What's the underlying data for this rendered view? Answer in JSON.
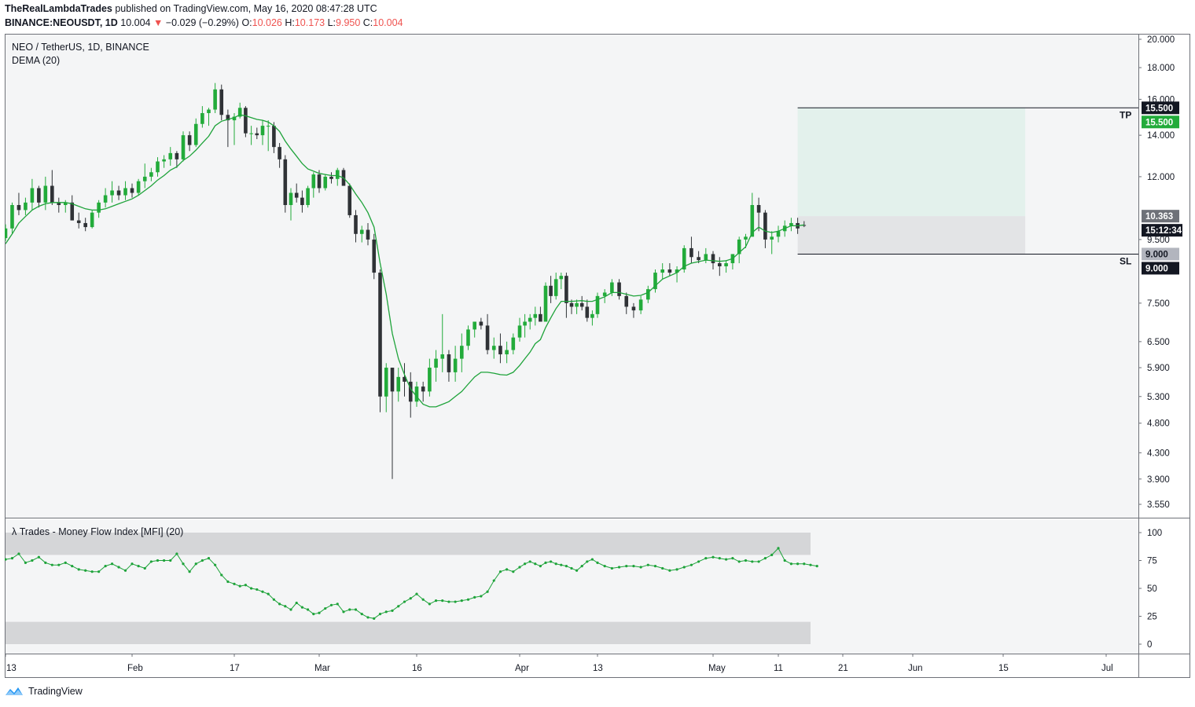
{
  "header": {
    "author": "TheRealLambdaTrades",
    "published": "published on TradingView.com, May 16, 2020 08:47:28 UTC",
    "symbol": "BINANCE:NEOUSDT, 1D",
    "last": "10.004",
    "change_arrow": "▼",
    "change": "−0.029 (−0.29%)",
    "o_label": "O:",
    "o_val": "10.026",
    "h_label": "H:",
    "h_val": "10.173",
    "l_label": "L:",
    "l_val": "9.950",
    "c_label": "C:",
    "c_val": "10.004"
  },
  "legend": {
    "pair": "NEO / TetherUS, 1D, BINANCE",
    "indicator": "DEMA (20)",
    "mfi_title": "λ Trades - Money Flow Index [MFI] (20)"
  },
  "footer": {
    "brand": "TradingView"
  },
  "colors": {
    "up": "#089981",
    "up_fill": "#26a69a",
    "bull": "#22ab3a",
    "bear": "#2f3236",
    "dema": "#1ea33a",
    "tp_zone": "#e3f1ec",
    "sl_zone": "#e3e4e6",
    "band": "#d5d6d8"
  },
  "chart_data": [
    {
      "type": "candlestick",
      "title": "NEO / TetherUS, 1D, BINANCE",
      "y_ticks": [
        "20.000",
        "18.000",
        "16.000",
        "14.000",
        "12.000",
        "10.363",
        "9.500",
        "9.000",
        "7.500",
        "6.500",
        "5.900",
        "5.300",
        "4.800",
        "4.300",
        "3.900",
        "3.550"
      ],
      "y_tick_values": [
        20.0,
        18.0,
        16.0,
        14.0,
        12.0,
        10.363,
        9.5,
        9.0,
        7.5,
        6.5,
        5.9,
        5.3,
        4.8,
        4.3,
        3.9,
        3.55
      ],
      "x_ticks": [
        "13",
        "Feb",
        "17",
        "Mar",
        "16",
        "Apr",
        "13",
        "May",
        "11",
        "21",
        "Jun",
        "15",
        "Jul"
      ],
      "x_tick_days": [
        0,
        19,
        35,
        50,
        66,
        82,
        97,
        113,
        123,
        133,
        143,
        157,
        171
      ],
      "candles_ohlc_from_jan13": [
        [
          9.55,
          10.05,
          9.45,
          9.9
        ],
        [
          9.9,
          10.9,
          9.7,
          10.8
        ],
        [
          10.8,
          11.3,
          10.4,
          10.6
        ],
        [
          10.6,
          11.1,
          10.4,
          10.9
        ],
        [
          10.9,
          11.9,
          10.6,
          11.5
        ],
        [
          11.5,
          11.6,
          10.7,
          10.9
        ],
        [
          10.9,
          12.0,
          10.6,
          11.6
        ],
        [
          11.6,
          12.3,
          10.8,
          10.9
        ],
        [
          10.9,
          11.1,
          10.5,
          10.8
        ],
        [
          10.8,
          11.0,
          10.5,
          10.9
        ],
        [
          10.9,
          11.2,
          10.2,
          10.2
        ],
        [
          10.2,
          10.5,
          9.9,
          10.1
        ],
        [
          10.1,
          10.3,
          9.8,
          9.95
        ],
        [
          9.95,
          10.6,
          9.9,
          10.5
        ],
        [
          10.5,
          11.0,
          10.3,
          10.9
        ],
        [
          10.9,
          11.5,
          10.7,
          11.2
        ],
        [
          11.2,
          11.8,
          10.9,
          11.4
        ],
        [
          11.4,
          11.6,
          11.0,
          11.2
        ],
        [
          11.2,
          11.8,
          11.0,
          11.5
        ],
        [
          11.5,
          11.7,
          11.1,
          11.3
        ],
        [
          11.3,
          11.9,
          11.2,
          11.8
        ],
        [
          11.8,
          12.6,
          11.5,
          12.0
        ],
        [
          12.0,
          12.4,
          11.8,
          12.2
        ],
        [
          12.2,
          12.9,
          12.0,
          12.7
        ],
        [
          12.7,
          13.0,
          12.4,
          12.8
        ],
        [
          12.8,
          13.4,
          12.5,
          13.1
        ],
        [
          13.1,
          13.2,
          12.4,
          12.8
        ],
        [
          12.8,
          14.2,
          12.7,
          14.0
        ],
        [
          14.0,
          14.2,
          13.2,
          13.5
        ],
        [
          13.5,
          14.9,
          13.4,
          14.6
        ],
        [
          14.6,
          15.6,
          14.4,
          15.2
        ],
        [
          15.2,
          15.5,
          14.5,
          15.4
        ],
        [
          15.4,
          17.0,
          15.2,
          16.6
        ],
        [
          16.6,
          16.9,
          14.8,
          15.1
        ],
        [
          15.1,
          15.4,
          13.4,
          14.8
        ],
        [
          14.8,
          15.2,
          13.5,
          15.0
        ],
        [
          15.0,
          15.8,
          14.9,
          15.5
        ],
        [
          15.5,
          15.6,
          13.9,
          14.1
        ],
        [
          14.1,
          14.5,
          13.5,
          14.1
        ],
        [
          14.1,
          14.4,
          13.8,
          14.0
        ],
        [
          14.0,
          14.8,
          13.5,
          14.5
        ],
        [
          14.5,
          14.8,
          13.2,
          14.5
        ],
        [
          14.5,
          14.7,
          13.1,
          13.4
        ],
        [
          13.4,
          13.6,
          12.4,
          12.8
        ],
        [
          12.8,
          13.0,
          10.5,
          10.8
        ],
        [
          10.8,
          11.5,
          10.2,
          11.3
        ],
        [
          11.3,
          11.7,
          10.9,
          11.1
        ],
        [
          11.1,
          11.4,
          10.5,
          10.8
        ],
        [
          10.8,
          11.6,
          10.7,
          11.5
        ],
        [
          11.5,
          12.2,
          11.1,
          12.1
        ],
        [
          12.1,
          12.3,
          11.3,
          11.5
        ],
        [
          11.5,
          12.1,
          11.4,
          12.0
        ],
        [
          12.0,
          12.2,
          11.7,
          11.9
        ],
        [
          11.9,
          12.4,
          11.6,
          12.3
        ],
        [
          12.3,
          12.4,
          11.6,
          11.6
        ],
        [
          11.6,
          11.7,
          10.3,
          10.4
        ],
        [
          10.4,
          10.6,
          9.4,
          9.7
        ],
        [
          9.7,
          10.0,
          9.4,
          9.85
        ],
        [
          9.85,
          10.1,
          9.3,
          9.5
        ],
        [
          9.5,
          9.7,
          8.2,
          8.4
        ],
        [
          8.4,
          8.5,
          5.0,
          5.3
        ],
        [
          5.3,
          6.0,
          5.0,
          5.9
        ],
        [
          5.9,
          5.9,
          3.9,
          5.4
        ],
        [
          5.4,
          5.9,
          5.2,
          5.7
        ],
        [
          5.7,
          6.0,
          5.3,
          5.6
        ],
        [
          5.6,
          5.8,
          4.9,
          5.2
        ],
        [
          5.2,
          5.6,
          5.1,
          5.5
        ],
        [
          5.5,
          5.6,
          5.2,
          5.4
        ],
        [
          5.4,
          6.1,
          5.3,
          5.9
        ],
        [
          5.9,
          6.3,
          5.6,
          6.1
        ],
        [
          6.1,
          7.2,
          5.8,
          6.2
        ],
        [
          6.2,
          6.3,
          5.6,
          5.8
        ],
        [
          5.8,
          6.4,
          5.6,
          6.1
        ],
        [
          6.1,
          6.7,
          5.8,
          6.4
        ],
        [
          6.4,
          6.9,
          6.3,
          6.8
        ],
        [
          6.8,
          7.0,
          6.6,
          7.0
        ],
        [
          7.0,
          7.1,
          6.8,
          6.9
        ],
        [
          6.9,
          7.2,
          6.2,
          6.3
        ],
        [
          6.3,
          6.6,
          6.1,
          6.4
        ],
        [
          6.4,
          6.7,
          6.0,
          6.2
        ],
        [
          6.2,
          6.5,
          6.0,
          6.3
        ],
        [
          6.3,
          6.7,
          6.2,
          6.6
        ],
        [
          6.6,
          7.1,
          6.5,
          6.9
        ],
        [
          6.9,
          7.2,
          6.6,
          7.0
        ],
        [
          7.0,
          7.2,
          6.8,
          7.1
        ],
        [
          7.1,
          7.4,
          6.9,
          7.2
        ],
        [
          7.2,
          7.4,
          7.0,
          7.0
        ],
        [
          7.0,
          8.1,
          7.0,
          8.0
        ],
        [
          8.0,
          8.3,
          7.5,
          7.7
        ],
        [
          7.7,
          8.4,
          7.6,
          8.2
        ],
        [
          8.2,
          8.4,
          7.9,
          8.3
        ],
        [
          8.3,
          8.4,
          7.1,
          7.5
        ],
        [
          7.5,
          7.6,
          7.2,
          7.4
        ],
        [
          7.4,
          7.6,
          7.2,
          7.5
        ],
        [
          7.5,
          7.7,
          7.3,
          7.4
        ],
        [
          7.4,
          7.6,
          7.0,
          7.1
        ],
        [
          7.1,
          7.3,
          6.9,
          7.2
        ],
        [
          7.2,
          7.8,
          7.1,
          7.7
        ],
        [
          7.7,
          7.9,
          7.5,
          7.8
        ],
        [
          7.8,
          8.2,
          7.7,
          8.1
        ],
        [
          8.1,
          8.2,
          7.6,
          7.7
        ],
        [
          7.7,
          7.8,
          7.2,
          7.4
        ],
        [
          7.4,
          7.5,
          7.1,
          7.3
        ],
        [
          7.3,
          7.7,
          7.2,
          7.6
        ],
        [
          7.6,
          8.0,
          7.5,
          7.9
        ],
        [
          7.9,
          8.5,
          7.8,
          8.4
        ],
        [
          8.4,
          8.7,
          8.2,
          8.5
        ],
        [
          8.5,
          8.7,
          8.3,
          8.4
        ],
        [
          8.4,
          8.6,
          8.1,
          8.5
        ],
        [
          8.5,
          9.3,
          8.4,
          9.2
        ],
        [
          9.2,
          9.6,
          8.7,
          8.9
        ],
        [
          8.9,
          9.1,
          8.7,
          8.8
        ],
        [
          8.8,
          9.2,
          8.7,
          9.0
        ],
        [
          9.0,
          9.1,
          8.5,
          8.7
        ],
        [
          8.7,
          8.9,
          8.3,
          8.6
        ],
        [
          8.6,
          8.8,
          8.4,
          8.7
        ],
        [
          8.7,
          9.0,
          8.5,
          9.0
        ],
        [
          9.0,
          9.6,
          8.7,
          9.5
        ],
        [
          9.5,
          9.7,
          9.2,
          9.6
        ],
        [
          9.6,
          11.3,
          9.6,
          10.8
        ],
        [
          10.8,
          11.1,
          9.8,
          10.5
        ],
        [
          10.5,
          10.6,
          9.2,
          9.5
        ],
        [
          9.5,
          9.8,
          9.0,
          9.6
        ],
        [
          9.6,
          10.0,
          9.4,
          9.8
        ],
        [
          9.8,
          10.2,
          9.6,
          10.0
        ],
        [
          10.0,
          10.3,
          9.8,
          10.1
        ],
        [
          10.1,
          10.3,
          9.7,
          9.9
        ],
        [
          10.026,
          10.173,
          9.95,
          10.004
        ]
      ],
      "dema_20": [
        9.35,
        9.7,
        10.1,
        10.35,
        10.6,
        10.75,
        10.85,
        10.9,
        10.9,
        10.9,
        10.85,
        10.75,
        10.65,
        10.6,
        10.6,
        10.65,
        10.75,
        10.85,
        10.95,
        11.05,
        11.2,
        11.4,
        11.6,
        11.85,
        12.05,
        12.3,
        12.45,
        12.75,
        12.95,
        13.25,
        13.6,
        13.95,
        14.5,
        14.75,
        14.85,
        14.95,
        15.1,
        15.05,
        14.95,
        14.85,
        14.8,
        14.7,
        14.5,
        14.2,
        13.7,
        13.3,
        12.95,
        12.6,
        12.35,
        12.25,
        12.15,
        12.1,
        12.05,
        12.05,
        11.95,
        11.65,
        11.25,
        10.9,
        10.5,
        9.95,
        8.7,
        7.75,
        6.7,
        6.1,
        5.75,
        5.45,
        5.3,
        5.15,
        5.1,
        5.1,
        5.15,
        5.2,
        5.3,
        5.4,
        5.55,
        5.7,
        5.8,
        5.8,
        5.78,
        5.75,
        5.74,
        5.8,
        5.95,
        6.1,
        6.25,
        6.45,
        6.55,
        6.85,
        7.1,
        7.35,
        7.55,
        7.55,
        7.55,
        7.56,
        7.57,
        7.55,
        7.55,
        7.6,
        7.68,
        7.8,
        7.8,
        7.75,
        7.7,
        7.72,
        7.8,
        8.0,
        8.2,
        8.3,
        8.4,
        8.6,
        8.7,
        8.75,
        8.8,
        8.78,
        8.76,
        8.78,
        8.85,
        9.05,
        9.25,
        9.75,
        9.95,
        9.8,
        9.75,
        9.8,
        9.9,
        10.0,
        10.0,
        10.03
      ],
      "trade_levels": {
        "take_profit": 15.5,
        "take_profit_label": "TP",
        "take_profit_text": "15.500",
        "entry": 10.363,
        "entry_text": "10.363",
        "stop_loss": 9.0,
        "stop_loss_label": "SL",
        "stop_loss_text": "9.000",
        "countdown": "15:12:34"
      }
    },
    {
      "type": "line",
      "title": "λ Trades - Money Flow Index [MFI] (20)",
      "y_ticks": [
        "100",
        "75",
        "50",
        "25",
        "0"
      ],
      "y_tick_values": [
        100,
        75,
        50,
        25,
        0
      ],
      "bands": [
        [
          80,
          100
        ],
        [
          0,
          20
        ]
      ],
      "values": [
        76,
        77,
        81,
        73,
        75,
        78,
        73,
        71,
        71,
        73,
        70,
        67,
        66,
        65,
        65,
        70,
        72,
        69,
        66,
        72,
        70,
        68,
        74,
        75,
        75,
        75,
        81,
        72,
        65,
        72,
        75,
        77,
        71,
        62,
        56,
        54,
        52,
        53,
        50,
        49,
        47,
        45,
        40,
        36,
        34,
        31,
        37,
        33,
        31,
        27,
        28,
        32,
        35,
        36,
        29,
        31,
        31,
        27,
        24,
        23,
        27,
        29,
        30,
        34,
        38,
        41,
        45,
        40,
        36,
        39,
        39,
        38,
        38,
        39,
        40,
        42,
        43,
        47,
        57,
        65,
        67,
        65,
        69,
        72,
        74,
        72,
        70,
        73,
        74,
        72,
        71,
        70,
        68,
        66,
        70,
        74,
        76,
        73,
        70,
        68,
        69,
        70,
        70,
        69,
        71,
        70,
        68,
        66,
        67,
        69,
        71,
        74,
        77,
        78,
        77,
        76,
        77,
        74,
        75,
        74,
        74,
        77,
        80,
        86,
        75,
        72,
        72,
        72,
        71,
        70
      ]
    }
  ]
}
